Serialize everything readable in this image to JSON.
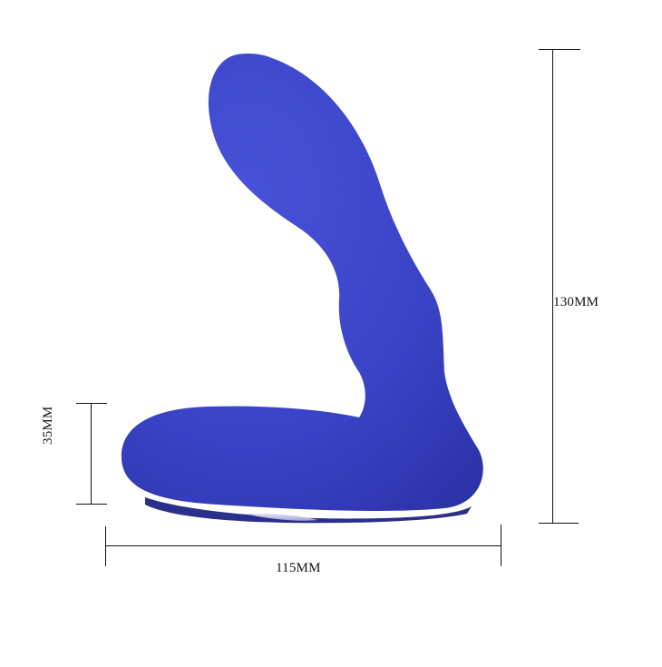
{
  "product": {
    "name": "product-illustration",
    "body_color": "#3b44c8",
    "base_color": "#2a2f8a",
    "base_highlight": "#d8d8f0"
  },
  "dimensions": {
    "height_label": "130MM",
    "width_label": "115MM",
    "depth_label": "35MM",
    "line_color": "#111111"
  }
}
